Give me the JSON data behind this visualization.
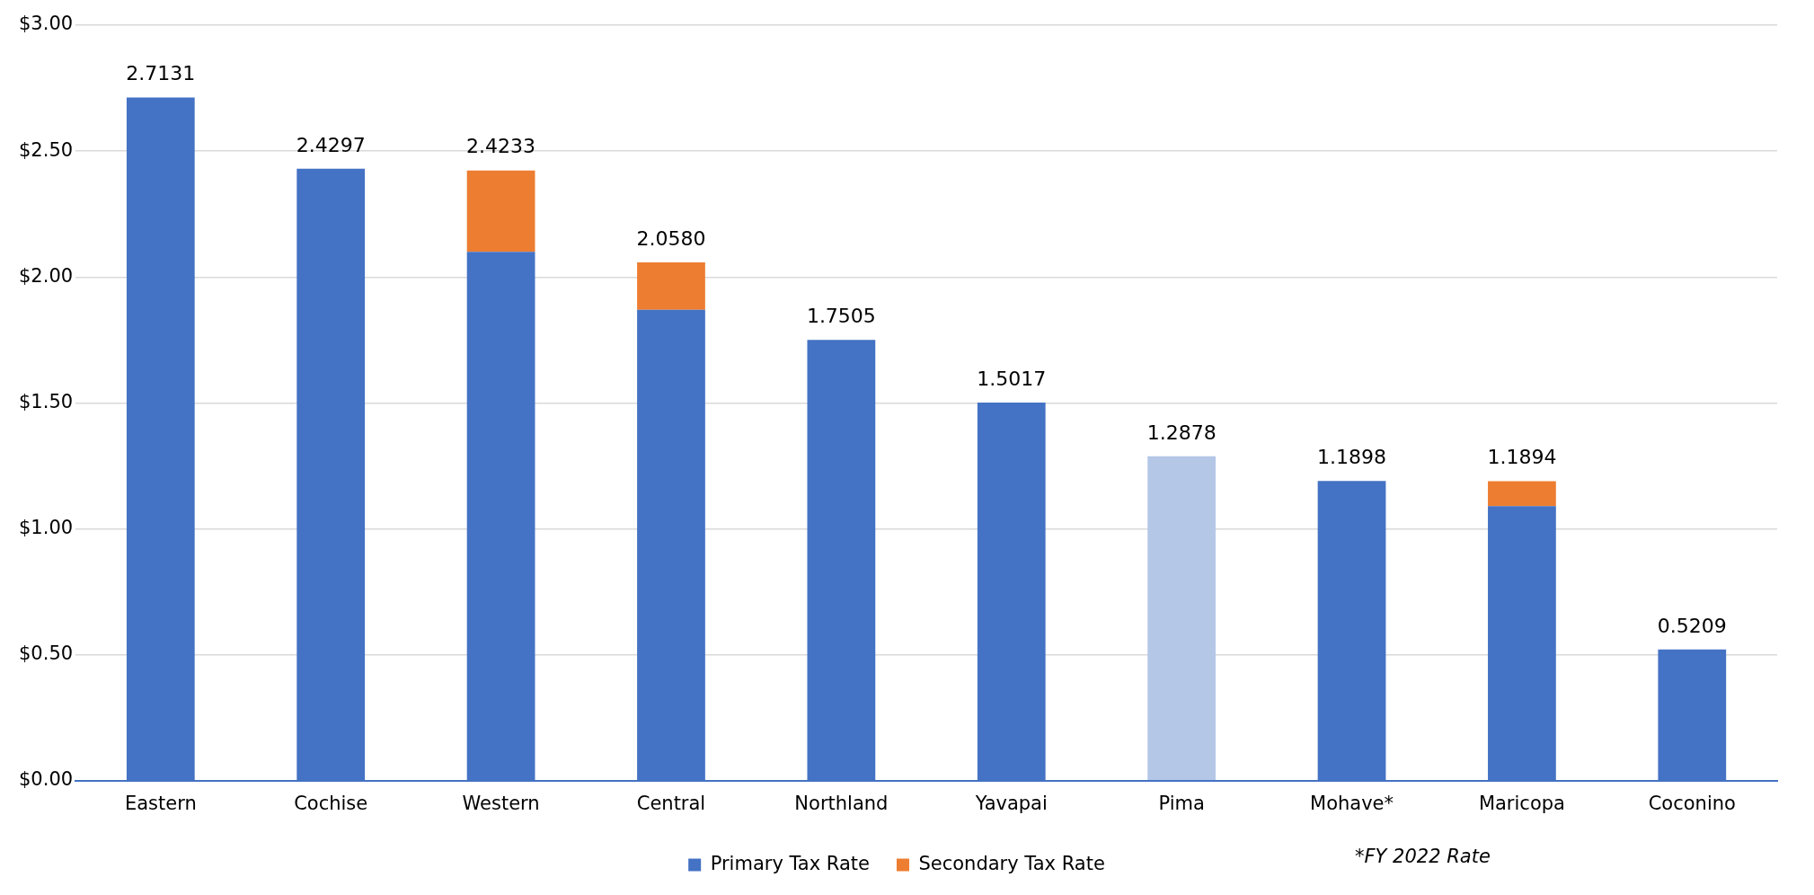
{
  "chart_data": {
    "type": "bar",
    "stacked": true,
    "categories": [
      "Eastern",
      "Cochise",
      "Western",
      "Central",
      "Northland",
      "Yavapai",
      "Pima",
      "Mohave*",
      "Maricopa",
      "Coconino"
    ],
    "series": [
      {
        "name": "Primary Tax Rate",
        "color": "#4472c4",
        "colors": [
          "#4472c4",
          "#4472c4",
          "#4472c4",
          "#4472c4",
          "#4472c4",
          "#4472c4",
          "#b4c7e7",
          "#4472c4",
          "#4472c4",
          "#4472c4"
        ],
        "values": [
          2.7131,
          2.4297,
          2.1,
          1.87,
          1.7505,
          1.5017,
          1.2878,
          1.1898,
          1.09,
          0.5209
        ]
      },
      {
        "name": "Secondary Tax Rate",
        "color": "#ed7d31",
        "values": [
          null,
          null,
          0.3233,
          0.188,
          null,
          null,
          null,
          null,
          0.0994,
          null
        ]
      }
    ],
    "totals": [
      "2.7131",
      "2.4297",
      "2.4233",
      "2.0580",
      "1.7505",
      "1.5017",
      "1.2878",
      "1.1898",
      "1.1894",
      "0.5209"
    ],
    "ylim": [
      0,
      3
    ],
    "yticks": [
      {
        "value": 0,
        "label": "$0.00"
      },
      {
        "value": 0.5,
        "label": "$0.50"
      },
      {
        "value": 1,
        "label": "$1.00"
      },
      {
        "value": 1.5,
        "label": "$1.50"
      },
      {
        "value": 2,
        "label": "$2.00"
      },
      {
        "value": 2.5,
        "label": "$2.50"
      },
      {
        "value": 3,
        "label": "$3.00"
      }
    ],
    "grid": "y",
    "legend": "bottom",
    "annotations": [
      "*FY 2022 Rate"
    ]
  }
}
